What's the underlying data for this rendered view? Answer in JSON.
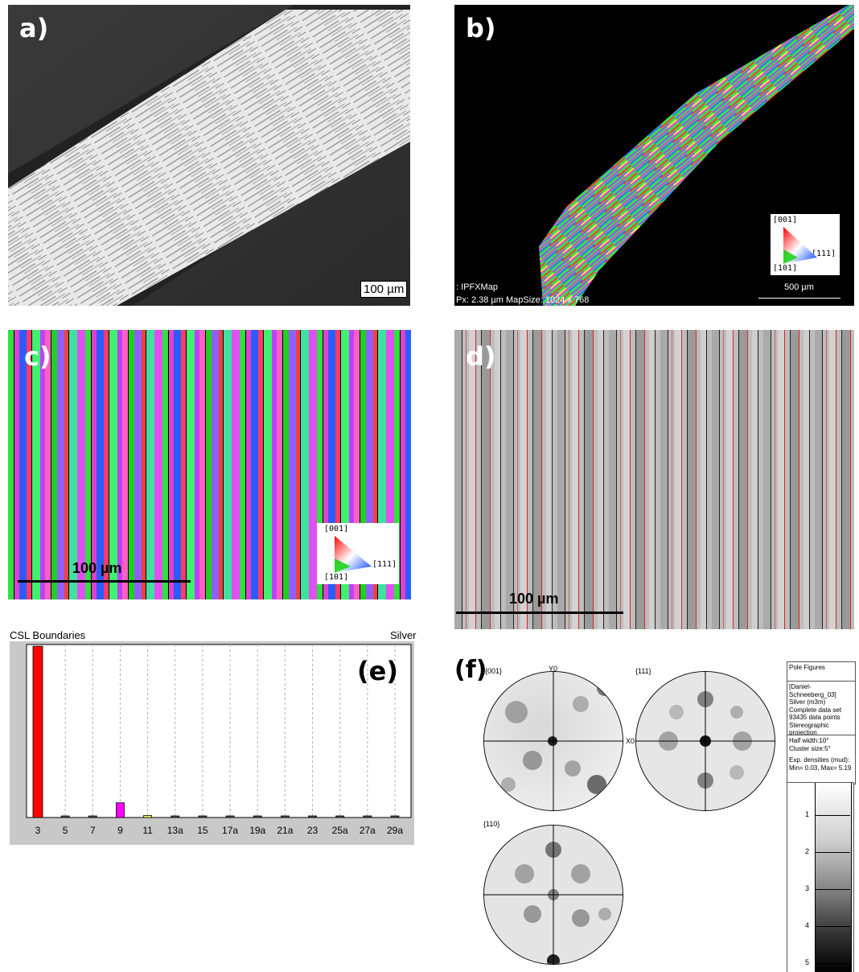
{
  "panels": {
    "a": {
      "label": "a)",
      "scale": "100 µm"
    },
    "b": {
      "label": "b)",
      "scale": "500 µm",
      "map_name": ":  IPFXMap",
      "map_info": "Px: 2.38 µm  MapSize: 1024 x 768",
      "key": {
        "top": "[001]",
        "left": "[101]",
        "right": "[111]"
      }
    },
    "c": {
      "label": "c)",
      "scale": "100 µm",
      "key": {
        "top": "[001]",
        "left": "[101]",
        "right": "[111]"
      }
    },
    "d": {
      "label": "d)",
      "scale": "100 µm"
    },
    "e": {
      "label": "(e)",
      "title": "CSL Boundaries",
      "material": "Silver"
    },
    "f": {
      "label": "(f)",
      "figures": [
        {
          "name": "{001}",
          "y_axis": "Y0",
          "x_axis": "X0"
        },
        {
          "name": "{111}"
        },
        {
          "name": "{110}"
        }
      ],
      "info": {
        "header": "Pole Figures",
        "lines1": [
          "[Daniel-Schneeberg_03]",
          "Silver (m3m)",
          "Complete data set",
          "93435 data points",
          "Stereographic projection",
          "Upper hemispheres"
        ],
        "lines2": [
          "Half width:10°",
          "Cluster size:5°"
        ],
        "lines3": [
          "Exp. densities (mud):",
          "Min= 0.03, Max= 5.19"
        ]
      },
      "colorbar_ticks": [
        "1",
        "2",
        "3",
        "4",
        "5"
      ]
    }
  },
  "chart_data": {
    "type": "bar",
    "title": "CSL Boundaries",
    "categories": [
      "3",
      "5",
      "7",
      "9",
      "11",
      "13a",
      "15",
      "17a",
      "19a",
      "21a",
      "23",
      "25a",
      "27a",
      "29a"
    ],
    "values": [
      0.99,
      0.005,
      0.005,
      0.085,
      0.012,
      0.0,
      0.005,
      0.0,
      0.0,
      0.0,
      0.0,
      0.0,
      0.005,
      0.005
    ],
    "bar_colors": {
      "3": "#ff0000",
      "9": "#ff00ff",
      "11": "#ffff66",
      "other": "#555555"
    },
    "ylim": [
      0,
      1
    ],
    "legend": "Silver",
    "grid": true
  }
}
